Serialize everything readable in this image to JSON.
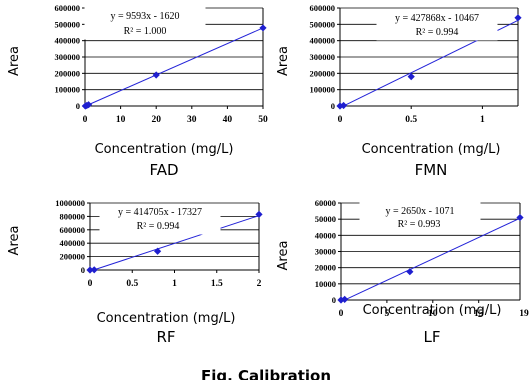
{
  "figure": {
    "caption": "Fig. Calibration"
  },
  "chart_data": [
    {
      "type": "scatter",
      "name": "FAD",
      "caption": "FAD",
      "title": "",
      "xlabel": "Concentration (mg/L)",
      "ylabel": "Area",
      "xlim": [
        0,
        50
      ],
      "ylim": [
        0,
        600000
      ],
      "xticks": [
        0,
        10,
        20,
        30,
        40,
        50
      ],
      "xtick_labels": [
        "0",
        "10",
        "20",
        "30",
        "40",
        "50"
      ],
      "yticks": [
        0,
        100000,
        200000,
        300000,
        400000,
        500000,
        600000
      ],
      "ytick_labels": [
        "0",
        "100000",
        "200000",
        "300000",
        "400000",
        "500000",
        "600000"
      ],
      "grid": {
        "horizontal": true,
        "vertical": false
      },
      "points": [
        {
          "x": 0.1,
          "y": 0
        },
        {
          "x": 0.5,
          "y": 3000
        },
        {
          "x": 1,
          "y": 8000
        },
        {
          "x": 20,
          "y": 190000
        },
        {
          "x": 50,
          "y": 478000
        }
      ],
      "fit": {
        "slope": 9593,
        "intercept": -1620,
        "x_range": [
          0.17,
          50
        ]
      },
      "equation": "y = 9593x - 1620",
      "r2": "R² = 1.000",
      "marker_color": "#1f1fcf",
      "line_color": "#2424d8"
    },
    {
      "type": "scatter",
      "name": "FMN",
      "caption": "FMN",
      "title": "",
      "xlabel": "Concentration (mg/L)",
      "ylabel": "Area",
      "xlim": [
        0,
        1.25
      ],
      "ylim": [
        0,
        600000
      ],
      "xticks": [
        0,
        0.5,
        1
      ],
      "xtick_labels": [
        "0",
        "0.5",
        "1"
      ],
      "yticks": [
        0,
        100000,
        200000,
        300000,
        400000,
        500000,
        600000
      ],
      "ytick_labels": [
        "0",
        "100000",
        "200000",
        "300000",
        "400000",
        "500000",
        "600000"
      ],
      "grid": {
        "horizontal": true,
        "vertical": false
      },
      "points": [
        {
          "x": 0.0,
          "y": 0
        },
        {
          "x": 0.025,
          "y": 3000
        },
        {
          "x": 0.5,
          "y": 180000
        },
        {
          "x": 1.25,
          "y": 540000
        }
      ],
      "fit": {
        "slope": 427868,
        "intercept": -10467,
        "x_range": [
          0.025,
          1.25
        ]
      },
      "equation": "y = 427868x - 10467",
      "r2": "R² = 0.994",
      "marker_color": "#1f1fcf",
      "line_color": "#2424d8"
    },
    {
      "type": "scatter",
      "name": "RF",
      "caption": "RF",
      "title": "",
      "xlabel": "Concentration (mg/L)",
      "ylabel": "Area",
      "xlim": [
        0,
        2
      ],
      "ylim": [
        0,
        1000000
      ],
      "xticks": [
        0,
        0.5,
        1,
        1.5,
        2
      ],
      "xtick_labels": [
        "0",
        "0.5",
        "1",
        "1.5",
        "2"
      ],
      "yticks": [
        0,
        200000,
        400000,
        600000,
        800000,
        1000000
      ],
      "ytick_labels": [
        "0",
        "200000",
        "400000",
        "600000",
        "800000",
        "1000000"
      ],
      "grid": {
        "horizontal": true,
        "vertical": false
      },
      "points": [
        {
          "x": 0.0,
          "y": 0
        },
        {
          "x": 0.05,
          "y": 3000
        },
        {
          "x": 0.8,
          "y": 280000
        },
        {
          "x": 2.0,
          "y": 830000
        }
      ],
      "fit": {
        "slope": 414705,
        "intercept": -17327,
        "x_range": [
          0.042,
          2.0
        ]
      },
      "equation": "y = 414705x - 17327",
      "r2": "R² = 0.994",
      "marker_color": "#1f1fcf",
      "line_color": "#2424d8"
    },
    {
      "type": "scatter",
      "name": "LF",
      "caption": "LF",
      "title": "",
      "xlabel": "Concentration (mg/L)",
      "ylabel": "Area",
      "xlim": [
        0,
        19.5
      ],
      "ylim": [
        0,
        60000
      ],
      "xticks": [
        0,
        5,
        10,
        15
      ],
      "xtick_labels": [
        "0",
        "5",
        "10",
        "15"
      ],
      "last_xtick_label": "19",
      "yticks": [
        0,
        10000,
        20000,
        30000,
        40000,
        50000,
        60000
      ],
      "ytick_labels": [
        "0",
        "10000",
        "20000",
        "30000",
        "40000",
        "50000",
        "60000"
      ],
      "grid": {
        "horizontal": true,
        "vertical": false
      },
      "points": [
        {
          "x": 0.0,
          "y": 0
        },
        {
          "x": 0.4,
          "y": 400
        },
        {
          "x": 7.5,
          "y": 17500
        },
        {
          "x": 19.5,
          "y": 51000
        }
      ],
      "fit": {
        "slope": 2650,
        "intercept": -1071,
        "x_range": [
          0.41,
          19.5
        ]
      },
      "equation": "y = 2650x - 1071",
      "r2": "R² = 0.993",
      "marker_color": "#1f1fcf",
      "line_color": "#2424d8"
    }
  ]
}
